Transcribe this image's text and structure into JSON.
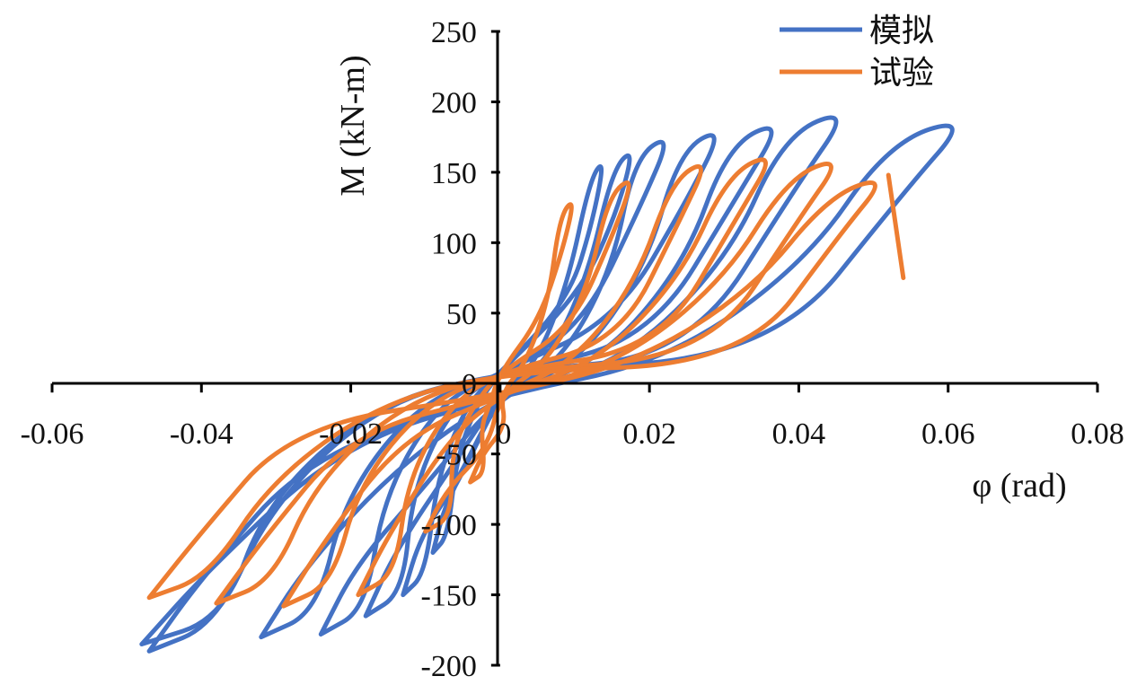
{
  "chart_data": {
    "type": "line",
    "title": "",
    "xlabel": "φ (rad)",
    "ylabel": "M (kN-m)",
    "xlim": [
      -0.06,
      0.08
    ],
    "ylim": [
      -200,
      250
    ],
    "xticks": [
      -0.06,
      -0.04,
      -0.02,
      0,
      0.02,
      0.04,
      0.06,
      0.08
    ],
    "xtick_labels": [
      "-0.06",
      "-0.04",
      "-0.02",
      "0",
      "0.02",
      "0.04",
      "0.06",
      "0.08"
    ],
    "yticks": [
      -200,
      -150,
      -100,
      -50,
      0,
      50,
      100,
      150,
      200,
      250
    ],
    "ytick_labels": [
      "-200",
      "-150",
      "-100",
      "-50",
      "0",
      "50",
      "100",
      "150",
      "200",
      "250"
    ],
    "grid": false,
    "legend_position": "top-right",
    "series": [
      {
        "name": "模拟",
        "color": "#4472C4",
        "loops": [
          {
            "pos": [
              0.014,
              160
            ],
            "neg": [
              -0.009,
              -120
            ],
            "res_pos": 60,
            "res_neg": -55,
            "w": 0.004
          },
          {
            "pos": [
              0.018,
              168
            ],
            "neg": [
              -0.013,
              -150
            ],
            "res_pos": 65,
            "res_neg": -70,
            "w": 0.006
          },
          {
            "pos": [
              0.023,
              178
            ],
            "neg": [
              -0.018,
              -165
            ],
            "res_pos": 40,
            "res_neg": -55,
            "w": 0.01
          },
          {
            "pos": [
              0.03,
              183
            ],
            "neg": [
              -0.024,
              -178
            ],
            "res_pos": 45,
            "res_neg": -70,
            "w": 0.012
          },
          {
            "pos": [
              0.038,
              188
            ],
            "neg": [
              -0.032,
              -180
            ],
            "res_pos": 30,
            "res_neg": -60,
            "w": 0.015
          },
          {
            "pos": [
              0.047,
              196
            ],
            "neg": [
              -0.047,
              -190
            ],
            "res_pos": 20,
            "res_neg": -50,
            "w": 0.018
          },
          {
            "pos": [
              0.063,
              190
            ],
            "neg": [
              -0.048,
              -185
            ],
            "res_pos": 20,
            "res_neg": -45,
            "w": 0.022
          }
        ]
      },
      {
        "name": "试验",
        "color": "#ED7D31",
        "loops": [
          {
            "pos": [
              0.01,
              132
            ],
            "neg": [
              -0.004,
              -70
            ],
            "res_pos": 45,
            "res_neg": -30,
            "w": 0.004
          },
          {
            "pos": [
              0.018,
              148
            ],
            "neg": [
              -0.01,
              -105
            ],
            "res_pos": 40,
            "res_neg": -45,
            "w": 0.007
          },
          {
            "pos": [
              0.028,
              160
            ],
            "neg": [
              -0.019,
              -150
            ],
            "res_pos": 30,
            "res_neg": -40,
            "w": 0.01
          },
          {
            "pos": [
              0.037,
              165
            ],
            "neg": [
              -0.029,
              -158
            ],
            "res_pos": 25,
            "res_neg": -40,
            "w": 0.013
          },
          {
            "pos": [
              0.046,
              162
            ],
            "neg": [
              -0.038,
              -156
            ],
            "res_pos": 20,
            "res_neg": -35,
            "w": 0.015
          },
          {
            "pos": [
              0.052,
              148
            ],
            "neg": [
              -0.047,
              -152
            ],
            "res_pos": 15,
            "res_neg": -30,
            "w": 0.016
          }
        ],
        "terminal": [
          [
            0.052,
            148
          ],
          [
            0.054,
            75
          ]
        ]
      }
    ]
  }
}
